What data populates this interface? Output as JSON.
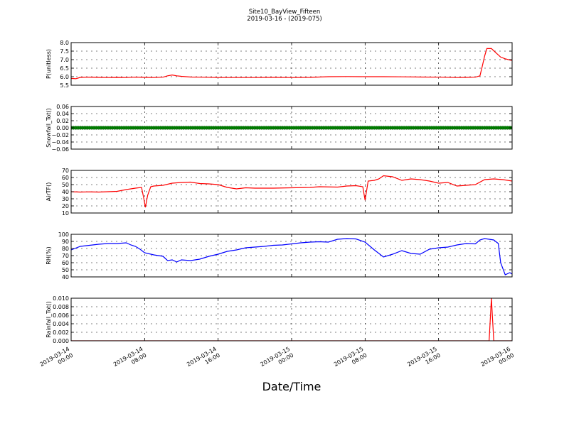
{
  "figure": {
    "title_line1": "Site10_BayView_Fifteen",
    "title_line2": "2019-03-16 - (2019-075)",
    "xlabel": "Date/Time"
  },
  "chart_data": {
    "type": "line",
    "grid": true,
    "x_range": [
      "2019-03-14 00:00",
      "2019-03-16 00:00"
    ],
    "x_tick_labels": [
      [
        "2019-03-14",
        "00:00"
      ],
      [
        "2019-03-14",
        "08:00"
      ],
      [
        "2019-03-14",
        "16:00"
      ],
      [
        "2019-03-15",
        "00:00"
      ],
      [
        "2019-03-15",
        "08:00"
      ],
      [
        "2019-03-15",
        "16:00"
      ],
      [
        "2019-03-16",
        "00:00"
      ]
    ],
    "x_tick_hours": [
      0,
      8,
      16,
      24,
      32,
      40,
      48
    ],
    "panels": [
      {
        "ylabel": "P(unitless)",
        "ylim": [
          5.5,
          8.0
        ],
        "yticks": [
          "5.5",
          "6.0",
          "6.5",
          "7.0",
          "7.5",
          "8.0"
        ],
        "ytick_values": [
          5.5,
          6.0,
          6.5,
          7.0,
          7.5,
          8.0
        ],
        "color": "#ff0000",
        "marker": false,
        "points": [
          [
            "2019-03-14 00:00",
            5.9
          ],
          [
            "2019-03-14 00:30",
            5.88
          ],
          [
            "2019-03-14 01:00",
            5.96
          ],
          [
            "2019-03-14 02:00",
            5.97
          ],
          [
            "2019-03-14 03:00",
            5.96
          ],
          [
            "2019-03-14 04:00",
            5.95
          ],
          [
            "2019-03-14 05:00",
            5.96
          ],
          [
            "2019-03-14 06:00",
            5.95
          ],
          [
            "2019-03-14 07:00",
            5.97
          ],
          [
            "2019-03-14 08:00",
            5.96
          ],
          [
            "2019-03-14 09:00",
            5.95
          ],
          [
            "2019-03-14 10:00",
            5.97
          ],
          [
            "2019-03-14 10:30",
            6.05
          ],
          [
            "2019-03-14 11:00",
            6.1
          ],
          [
            "2019-03-14 11:30",
            6.05
          ],
          [
            "2019-03-14 12:00",
            6.02
          ],
          [
            "2019-03-14 13:00",
            5.98
          ],
          [
            "2019-03-14 14:00",
            5.97
          ],
          [
            "2019-03-14 16:00",
            5.95
          ],
          [
            "2019-03-14 18:00",
            5.95
          ],
          [
            "2019-03-14 20:00",
            5.95
          ],
          [
            "2019-03-14 22:00",
            5.96
          ],
          [
            "2019-03-15 00:00",
            5.95
          ],
          [
            "2019-03-15 02:00",
            5.96
          ],
          [
            "2019-03-15 04:00",
            6.0
          ],
          [
            "2019-03-15 06:00",
            6.01
          ],
          [
            "2019-03-15 08:00",
            6.0
          ],
          [
            "2019-03-15 10:00",
            6.0
          ],
          [
            "2019-03-15 12:00",
            5.99
          ],
          [
            "2019-03-15 14:00",
            5.98
          ],
          [
            "2019-03-15 16:00",
            5.97
          ],
          [
            "2019-03-15 18:00",
            5.95
          ],
          [
            "2019-03-15 19:00",
            5.96
          ],
          [
            "2019-03-15 20:00",
            5.97
          ],
          [
            "2019-03-15 20:30",
            6.05
          ],
          [
            "2019-03-15 20:45",
            6.6
          ],
          [
            "2019-03-15 21:00",
            7.2
          ],
          [
            "2019-03-15 21:15",
            7.65
          ],
          [
            "2019-03-15 21:45",
            7.65
          ],
          [
            "2019-03-15 22:15",
            7.4
          ],
          [
            "2019-03-15 22:45",
            7.15
          ],
          [
            "2019-03-15 23:15",
            7.05
          ],
          [
            "2019-03-15 23:45",
            6.98
          ],
          [
            "2019-03-16 00:00",
            6.96
          ]
        ]
      },
      {
        "ylabel": "Snowfall_Tot()",
        "ylim": [
          -0.06,
          0.06
        ],
        "yticks": [
          "−0.06",
          "−0.04",
          "−0.02",
          "0.00",
          "0.02",
          "0.04",
          "0.06"
        ],
        "ytick_values": [
          -0.06,
          -0.04,
          -0.02,
          0.0,
          0.02,
          0.04,
          0.06
        ],
        "color": "#008000",
        "marker": true,
        "points": [
          [
            "2019-03-14 00:00",
            0.0
          ],
          [
            "2019-03-16 00:00",
            0.0
          ]
        ]
      },
      {
        "ylabel": "AirTF()",
        "ylim": [
          10,
          70
        ],
        "yticks": [
          "10",
          "20",
          "30",
          "40",
          "50",
          "60",
          "70"
        ],
        "ytick_values": [
          10,
          20,
          30,
          40,
          50,
          60,
          70
        ],
        "color": "#ff0000",
        "marker": false,
        "points": [
          [
            "2019-03-14 00:00",
            40
          ],
          [
            "2019-03-14 01:00",
            39.5
          ],
          [
            "2019-03-14 02:00",
            39.8
          ],
          [
            "2019-03-14 03:00",
            39.5
          ],
          [
            "2019-03-14 04:00",
            40
          ],
          [
            "2019-03-14 05:00",
            40.5
          ],
          [
            "2019-03-14 06:00",
            43
          ],
          [
            "2019-03-14 07:00",
            45
          ],
          [
            "2019-03-14 07:40",
            46
          ],
          [
            "2019-03-14 07:55",
            30
          ],
          [
            "2019-03-14 08:05",
            18
          ],
          [
            "2019-03-14 08:20",
            35
          ],
          [
            "2019-03-14 08:40",
            47
          ],
          [
            "2019-03-14 09:00",
            48
          ],
          [
            "2019-03-14 10:00",
            49
          ],
          [
            "2019-03-14 11:00",
            52
          ],
          [
            "2019-03-14 12:00",
            53
          ],
          [
            "2019-03-14 13:00",
            53.5
          ],
          [
            "2019-03-14 14:00",
            51.5
          ],
          [
            "2019-03-14 15:00",
            51
          ],
          [
            "2019-03-14 16:00",
            50
          ],
          [
            "2019-03-14 17:00",
            46
          ],
          [
            "2019-03-14 18:00",
            44
          ],
          [
            "2019-03-14 19:00",
            45.5
          ],
          [
            "2019-03-14 20:00",
            45
          ],
          [
            "2019-03-14 22:00",
            45
          ],
          [
            "2019-03-15 00:00",
            45.5
          ],
          [
            "2019-03-15 02:00",
            46
          ],
          [
            "2019-03-15 03:00",
            47
          ],
          [
            "2019-03-15 05:00",
            46.5
          ],
          [
            "2019-03-15 06:00",
            48
          ],
          [
            "2019-03-15 07:00",
            48.5
          ],
          [
            "2019-03-15 07:45",
            47
          ],
          [
            "2019-03-15 08:00",
            28
          ],
          [
            "2019-03-15 08:20",
            55
          ],
          [
            "2019-03-15 09:00",
            56
          ],
          [
            "2019-03-15 09:30",
            58
          ],
          [
            "2019-03-15 10:00",
            62.5
          ],
          [
            "2019-03-15 11:00",
            61
          ],
          [
            "2019-03-15 12:00",
            56
          ],
          [
            "2019-03-15 13:00",
            58
          ],
          [
            "2019-03-15 14:00",
            57
          ],
          [
            "2019-03-15 15:00",
            55
          ],
          [
            "2019-03-15 16:00",
            52
          ],
          [
            "2019-03-15 17:00",
            53
          ],
          [
            "2019-03-15 18:00",
            48
          ],
          [
            "2019-03-15 19:00",
            49
          ],
          [
            "2019-03-15 20:00",
            50
          ],
          [
            "2019-03-15 21:00",
            57
          ],
          [
            "2019-03-15 22:00",
            58
          ],
          [
            "2019-03-15 23:00",
            57
          ],
          [
            "2019-03-16 00:00",
            55
          ]
        ]
      },
      {
        "ylabel": "RH(%)",
        "ylim": [
          40,
          100
        ],
        "yticks": [
          "40",
          "50",
          "60",
          "70",
          "80",
          "90",
          "100"
        ],
        "ytick_values": [
          40,
          50,
          60,
          70,
          80,
          90,
          100
        ],
        "color": "#0000ff",
        "marker": false,
        "points": [
          [
            "2019-03-14 00:00",
            78
          ],
          [
            "2019-03-14 01:00",
            83
          ],
          [
            "2019-03-14 02:00",
            84.5
          ],
          [
            "2019-03-14 03:00",
            86
          ],
          [
            "2019-03-14 04:00",
            87
          ],
          [
            "2019-03-14 05:00",
            87
          ],
          [
            "2019-03-14 06:00",
            88
          ],
          [
            "2019-03-14 06:30",
            85
          ],
          [
            "2019-03-14 07:00",
            83
          ],
          [
            "2019-03-14 07:30",
            79
          ],
          [
            "2019-03-14 08:00",
            74
          ],
          [
            "2019-03-14 09:00",
            71
          ],
          [
            "2019-03-14 10:00",
            69
          ],
          [
            "2019-03-14 10:30",
            63
          ],
          [
            "2019-03-14 11:00",
            64
          ],
          [
            "2019-03-14 11:30",
            61
          ],
          [
            "2019-03-14 12:00",
            64
          ],
          [
            "2019-03-14 13:00",
            63
          ],
          [
            "2019-03-14 14:00",
            65
          ],
          [
            "2019-03-14 15:00",
            69
          ],
          [
            "2019-03-14 16:00",
            72
          ],
          [
            "2019-03-14 17:00",
            76
          ],
          [
            "2019-03-14 18:00",
            78
          ],
          [
            "2019-03-14 19:00",
            81
          ],
          [
            "2019-03-14 20:00",
            82
          ],
          [
            "2019-03-14 21:00",
            83
          ],
          [
            "2019-03-14 22:00",
            84.5
          ],
          [
            "2019-03-14 23:00",
            85
          ],
          [
            "2019-03-15 00:00",
            86.5
          ],
          [
            "2019-03-15 01:00",
            88
          ],
          [
            "2019-03-15 02:00",
            89
          ],
          [
            "2019-03-15 03:00",
            89.5
          ],
          [
            "2019-03-15 04:00",
            89
          ],
          [
            "2019-03-15 05:00",
            93
          ],
          [
            "2019-03-15 06:00",
            94
          ],
          [
            "2019-03-15 07:00",
            93.5
          ],
          [
            "2019-03-15 08:00",
            89
          ],
          [
            "2019-03-15 09:00",
            78
          ],
          [
            "2019-03-15 10:00",
            68
          ],
          [
            "2019-03-15 11:00",
            72
          ],
          [
            "2019-03-15 12:00",
            77
          ],
          [
            "2019-03-15 13:00",
            73
          ],
          [
            "2019-03-15 14:00",
            72
          ],
          [
            "2019-03-15 15:00",
            79
          ],
          [
            "2019-03-15 16:00",
            81
          ],
          [
            "2019-03-15 17:00",
            82
          ],
          [
            "2019-03-15 18:00",
            85
          ],
          [
            "2019-03-15 19:00",
            87
          ],
          [
            "2019-03-15 20:00",
            86.5
          ],
          [
            "2019-03-15 20:30",
            92
          ],
          [
            "2019-03-15 21:00",
            94
          ],
          [
            "2019-03-15 22:00",
            92
          ],
          [
            "2019-03-15 22:30",
            87
          ],
          [
            "2019-03-15 22:45",
            60
          ],
          [
            "2019-03-15 23:15",
            43
          ],
          [
            "2019-03-15 23:45",
            46
          ],
          [
            "2019-03-16 00:00",
            44
          ]
        ]
      },
      {
        "ylabel": "Rainfall_Tot()",
        "ylim": [
          0.0,
          0.01
        ],
        "yticks": [
          "0.000",
          "0.002",
          "0.004",
          "0.006",
          "0.008",
          "0.010"
        ],
        "ytick_values": [
          0.0,
          0.002,
          0.004,
          0.006,
          0.008,
          0.01
        ],
        "color": "#ff0000",
        "marker": false,
        "points": [
          [
            "2019-03-14 00:00",
            0.0
          ],
          [
            "2019-03-15 21:30",
            0.0
          ],
          [
            "2019-03-15 21:45",
            0.01
          ],
          [
            "2019-03-15 22:00",
            0.0
          ],
          [
            "2019-03-16 00:00",
            0.0
          ]
        ]
      }
    ]
  }
}
